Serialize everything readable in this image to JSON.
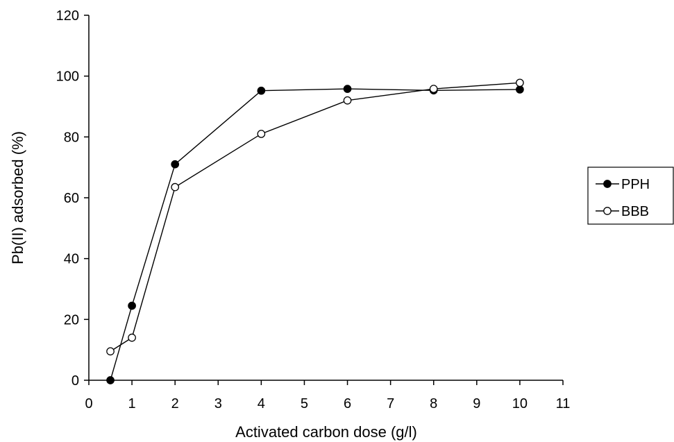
{
  "chart_data": {
    "type": "line",
    "xlabel": "Activated carbon dose (g/l)",
    "ylabel": "Pb(II) adsorbed (%)",
    "xlim": [
      0,
      11
    ],
    "ylim": [
      0,
      120
    ],
    "xticks": [
      "0",
      "1",
      "2",
      "3",
      "4",
      "5",
      "6",
      "7",
      "8",
      "9",
      "10",
      "11"
    ],
    "yticks": [
      "0",
      "20",
      "40",
      "60",
      "80",
      "100",
      "120"
    ],
    "grid": false,
    "legend_position": "right",
    "series": [
      {
        "name": "PPH",
        "marker": "filled-circle",
        "color": "#000000",
        "x": [
          0.5,
          1,
          2,
          4,
          6,
          8,
          10
        ],
        "y": [
          0,
          24.5,
          71,
          95.2,
          95.8,
          95.3,
          95.6
        ]
      },
      {
        "name": "BBB",
        "marker": "open-circle",
        "color": "#000000",
        "x": [
          0.5,
          1,
          2,
          4,
          6,
          8,
          10
        ],
        "y": [
          9.5,
          14,
          63.5,
          81,
          92,
          95.8,
          97.8
        ]
      }
    ]
  }
}
